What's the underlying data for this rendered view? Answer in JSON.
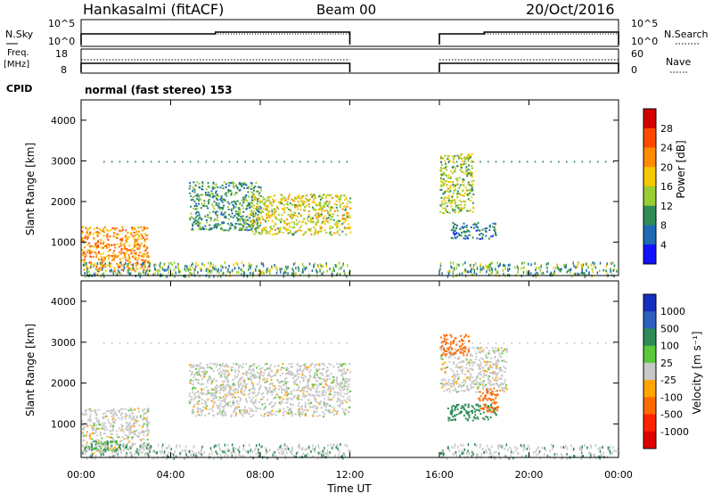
{
  "header": {
    "station": "Hankasalmi (fitACF)",
    "beam": "Beam 00",
    "date": "20/Oct/2016"
  },
  "noise_panel": {
    "left_label": "N.Sky",
    "right_label": "N.Search",
    "left_ticks": [
      "10^5",
      "10^0"
    ],
    "right_ticks": [
      "10^5",
      "10^0"
    ]
  },
  "freq_panel": {
    "left_label_1": "Freq.",
    "left_label_2": "[MHz]",
    "right_label": "Nave",
    "left_ticks": [
      "18",
      "8"
    ],
    "right_ticks": [
      "60",
      "0"
    ]
  },
  "cpid": {
    "label": "CPID",
    "mode": "normal (fast stereo) 153"
  },
  "power_panel": {
    "ylabel": "Slant Range [km]",
    "yticks": [
      "4000",
      "3000",
      "2000",
      "1000"
    ],
    "colorbar_label": "Power [dB]",
    "colorbar_ticks": [
      "28",
      "24",
      "20",
      "16",
      "12",
      "8",
      "4"
    ],
    "colorbar_colors": [
      "#d40000",
      "#ff4a00",
      "#ff8c00",
      "#f5c800",
      "#9acd32",
      "#2e8b57",
      "#1f6bb3",
      "#1111ff"
    ]
  },
  "velocity_panel": {
    "ylabel": "Slant Range [km]",
    "yticks": [
      "4000",
      "3000",
      "2000",
      "1000"
    ],
    "colorbar_label": "Velocity [m s⁻¹]",
    "colorbar_ticks": [
      "1000",
      "500",
      "100",
      "25",
      "-25",
      "-100",
      "-500",
      "-1000"
    ],
    "colorbar_colors": [
      "#1530c0",
      "#2e5fbf",
      "#2e8b57",
      "#5ac83c",
      "#c8c8c8",
      "#ffa500",
      "#ff6a00",
      "#ff2400",
      "#e00000"
    ]
  },
  "x_axis": {
    "label": "Time UT",
    "ticks": [
      "00:00",
      "04:00",
      "08:00",
      "12:00",
      "16:00",
      "20:00",
      "00:00"
    ]
  },
  "chart_data": [
    {
      "type": "heatmap",
      "title": "Power [dB]",
      "xlabel": "Time UT",
      "ylabel": "Slant Range [km]",
      "xlim_hours": [
        0,
        24
      ],
      "ylim_km": [
        180,
        4500
      ],
      "data_gap_hours": [
        12,
        16
      ],
      "echo_regions": [
        {
          "t_start": 0.0,
          "t_end": 3.0,
          "r_start": 300,
          "r_end": 1400,
          "power_db": 22
        },
        {
          "t_start": 4.8,
          "t_end": 8.0,
          "r_start": 1300,
          "r_end": 2500,
          "power_db": 10
        },
        {
          "t_start": 7.5,
          "t_end": 12.0,
          "r_start": 1200,
          "r_end": 2200,
          "power_db": 16
        },
        {
          "t_start": 16.0,
          "t_end": 17.5,
          "r_start": 1700,
          "r_end": 3200,
          "power_db": 14
        },
        {
          "t_start": 16.5,
          "t_end": 18.5,
          "r_start": 1100,
          "r_end": 1500,
          "power_db": 8
        }
      ]
    },
    {
      "type": "heatmap",
      "title": "Velocity [m s⁻¹]",
      "xlabel": "Time UT",
      "ylabel": "Slant Range [km]",
      "xlim_hours": [
        0,
        24
      ],
      "ylim_km": [
        180,
        4500
      ],
      "data_gap_hours": [
        12,
        16
      ],
      "echo_regions": [
        {
          "t_start": 0.0,
          "t_end": 3.0,
          "r_start": 300,
          "r_end": 1400,
          "velocity_ms": 0
        },
        {
          "t_start": 0.2,
          "t_end": 1.6,
          "r_start": 350,
          "r_end": 600,
          "velocity_ms": 100
        },
        {
          "t_start": 4.8,
          "t_end": 12.0,
          "r_start": 1200,
          "r_end": 2500,
          "velocity_ms": 0
        },
        {
          "t_start": 16.0,
          "t_end": 19.0,
          "r_start": 1800,
          "r_end": 2900,
          "velocity_ms": 0
        },
        {
          "t_start": 16.0,
          "t_end": 17.3,
          "r_start": 2700,
          "r_end": 3200,
          "velocity_ms": -300
        },
        {
          "t_start": 16.3,
          "t_end": 18.5,
          "r_start": 1100,
          "r_end": 1500,
          "velocity_ms": 150
        },
        {
          "t_start": 17.7,
          "t_end": 18.6,
          "r_start": 1300,
          "r_end": 1900,
          "velocity_ms": -300
        }
      ]
    }
  ]
}
